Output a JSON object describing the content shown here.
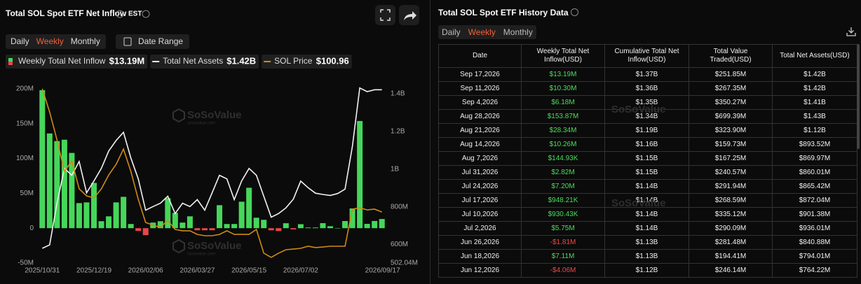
{
  "left_panel": {
    "title": "Total SOL Spot ETF Net Inflow",
    "timezone": "EST",
    "tabs": [
      "Daily",
      "Weekly",
      "Monthly"
    ],
    "active_tab": 1,
    "date_range": "Date Range"
  },
  "watermark": "SoSoValue",
  "watermark_url": "sosovalue.com",
  "chart_data": {
    "type": "bar",
    "categories": [
      "2025/10/31",
      null,
      null,
      null,
      null,
      null,
      null,
      "2025/12/19",
      null,
      null,
      null,
      null,
      null,
      null,
      "2026/02/06",
      null,
      null,
      null,
      null,
      null,
      null,
      "2026/03/27",
      null,
      null,
      null,
      null,
      null,
      null,
      "2026/05/15",
      null,
      null,
      null,
      null,
      null,
      null,
      "2026/07/02",
      null,
      null,
      null,
      null,
      null,
      null,
      null,
      null,
      null,
      null,
      "2026/09/17"
    ],
    "series": [
      {
        "name": "Weekly Total Net Inflow",
        "type": "bar",
        "color": "#45d75a",
        "negative_color": "#e8474a",
        "legend_value": "$13.19M",
        "values": [
          198,
          136,
          125,
          127,
          108,
          36,
          37,
          65,
          10,
          17,
          37,
          45,
          6,
          -4,
          -10,
          8,
          10,
          43,
          22,
          8,
          17,
          -3,
          -3,
          -3,
          33,
          6,
          6,
          38,
          58,
          15,
          12,
          -3,
          -4.06,
          7.11,
          -1.81,
          5.75,
          0.93043,
          0.94821,
          7.2,
          2.82,
          0.14493,
          10.26,
          28.34,
          153.87,
          6.18,
          10.3,
          13.19
        ]
      },
      {
        "name": "Total Net Assets",
        "type": "line",
        "axis": "y2",
        "color": "#f2f2f2",
        "legend_value": "$1.42B",
        "values": [
          580,
          598,
          819,
          1003,
          967,
          1040,
          874,
          937,
          1003,
          1096,
          1151,
          1195,
          1059,
          948,
          782,
          801,
          819,
          856,
          764,
          819,
          801,
          838,
          782,
          874,
          967,
          948,
          838,
          937,
          1003,
          967,
          856,
          745,
          764.22,
          794.01,
          840.88,
          936.01,
          901.38,
          872.04,
          865.42,
          860.01,
          869.97,
          893.52,
          1120,
          1430,
          1410,
          1420,
          1420
        ]
      },
      {
        "name": "SOL Price",
        "type": "line",
        "axis": "y3",
        "color": "#d08a12",
        "legend_value": "$100.96",
        "values": [
          200,
          181.4,
          159,
          133.7,
          142.1,
          119.6,
          114,
          112.3,
          119.6,
          130.8,
          139.3,
          151.6,
          133.7,
          111.2,
          92.6,
          90.4,
          88.7,
          94.3,
          87,
          85.9,
          85.9,
          83,
          81.9,
          81.9,
          83,
          85.9,
          83,
          83,
          83,
          87,
          67.9,
          64.5,
          67.9,
          70.7,
          71.2,
          71.8,
          73.5,
          72.4,
          72.9,
          73.5,
          73.5,
          73.5,
          103.3,
          104.4,
          102.7,
          103.3,
          100.96
        ]
      }
    ],
    "ylim": [
      -50,
      200
    ],
    "yticks": [
      {
        "value": 200,
        "label": "200M"
      },
      {
        "value": 150,
        "label": "150M"
      },
      {
        "value": 100,
        "label": "100M"
      },
      {
        "value": 50,
        "label": "50M"
      },
      0,
      {
        "value": -50,
        "label": "-50M"
      }
    ],
    "y2lim": [
      502.04,
      1425
    ],
    "y2ticks": [
      {
        "value": 1400,
        "label": "1.4B"
      },
      {
        "value": 1200,
        "label": "1.2B"
      },
      {
        "value": 1000,
        "label": "1B"
      },
      {
        "value": 800,
        "label": "800M"
      },
      {
        "value": 600,
        "label": "600M"
      },
      {
        "value": 502.04,
        "label": "502.04M"
      }
    ],
    "y3lim": [
      60,
      200
    ],
    "grid": false
  },
  "right_panel": {
    "title": "Total SOL Spot ETF History Data",
    "tabs": [
      "Daily",
      "Weekly",
      "Monthly"
    ],
    "active_tab": 1,
    "table": {
      "columns": [
        "Date",
        "Weekly Total Net Inflow(USD)",
        "Cumulative Total Net Inflow(USD)",
        "Total Value Traded(USD)",
        "Total Net Assets(USD)"
      ],
      "rows": [
        [
          "Sep 17,2026",
          "$13.19M",
          "$1.37B",
          "$251.85M",
          "$1.42B"
        ],
        [
          "Sep 11,2026",
          "$10.30M",
          "$1.36B",
          "$267.35M",
          "$1.42B"
        ],
        [
          "Sep 4,2026",
          "$6.18M",
          "$1.35B",
          "$350.27M",
          "$1.41B"
        ],
        [
          "Aug 28,2026",
          "$153.87M",
          "$1.34B",
          "$699.39M",
          "$1.43B"
        ],
        [
          "Aug 21,2026",
          "$28.34M",
          "$1.19B",
          "$323.90M",
          "$1.12B"
        ],
        [
          "Aug 14,2026",
          "$10.26M",
          "$1.16B",
          "$159.73M",
          "$893.52M"
        ],
        [
          "Aug 7,2026",
          "$144.93K",
          "$1.15B",
          "$167.25M",
          "$869.97M"
        ],
        [
          "Jul 31,2026",
          "$2.82M",
          "$1.15B",
          "$240.57M",
          "$860.01M"
        ],
        [
          "Jul 24,2026",
          "$7.20M",
          "$1.14B",
          "$291.94M",
          "$865.42M"
        ],
        [
          "Jul 17,2026",
          "$948.21K",
          "$1.14B",
          "$268.59M",
          "$872.04M"
        ],
        [
          "Jul 10,2026",
          "$930.43K",
          "$1.14B",
          "$335.12M",
          "$901.38M"
        ],
        [
          "Jul 2,2026",
          "$5.75M",
          "$1.14B",
          "$290.09M",
          "$936.01M"
        ],
        [
          "Jun 26,2026",
          "-$1.81M",
          "$1.13B",
          "$281.48M",
          "$840.88M"
        ],
        [
          "Jun 18,2026",
          "$7.11M",
          "$1.13B",
          "$194.41M",
          "$794.01M"
        ],
        [
          "Jun 12,2026",
          "-$4.06M",
          "$1.12B",
          "$246.14M",
          "$764.22M"
        ]
      ]
    }
  }
}
